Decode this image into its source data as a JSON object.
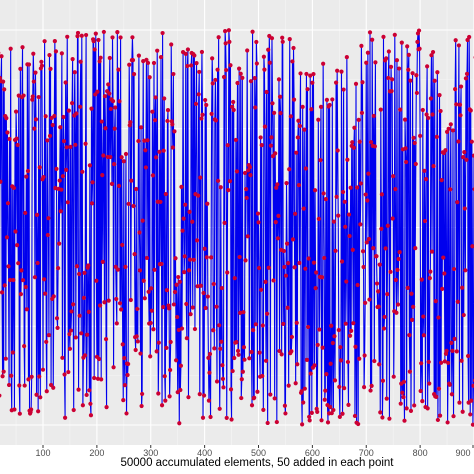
{
  "chart_data": {
    "type": "line",
    "title": "",
    "xlabel": "50000 accumulated elements, 50 added in each point",
    "ylabel": "",
    "xlim": [
      -5,
      910
    ],
    "ylim": [
      0,
      1
    ],
    "x_ticks": [
      100,
      200,
      300,
      400,
      500,
      600,
      700,
      800,
      900
    ],
    "x_tick_labels": [
      "100",
      "200",
      "300",
      "400",
      "500",
      "600",
      "700",
      "800",
      "900"
    ],
    "grid": true,
    "series": [
      {
        "line_color": "#0000ee",
        "point_color": "#cc0033",
        "x_start": 1,
        "x_step": 1,
        "generator": "pseudo-random oscillation, 910 points"
      }
    ]
  },
  "colors": {
    "panel_background": "#ebebeb",
    "grid_major": "#ffffff",
    "grid_minor": "#f5f5f5",
    "line": "#0000ee",
    "points": "#cc0033"
  }
}
